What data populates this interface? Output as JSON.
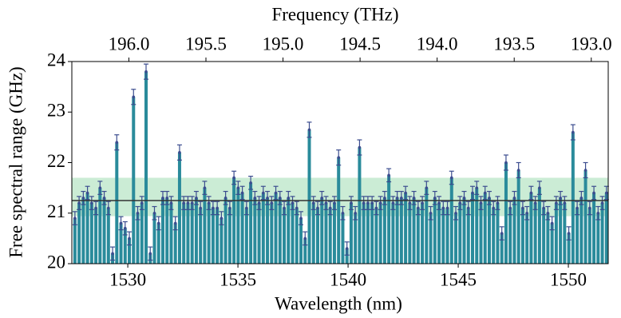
{
  "chart_data": {
    "type": "bar",
    "title": "Frequency (THz)",
    "x_label": "Wavelength (nm)",
    "y_label": "Free spectral range (GHz)",
    "x": [
      1527.6,
      1527.79,
      1527.98,
      1528.17,
      1528.36,
      1528.55,
      1528.74,
      1528.93,
      1529.12,
      1529.31,
      1529.5,
      1529.69,
      1529.88,
      1530.07,
      1530.26,
      1530.45,
      1530.64,
      1530.83,
      1531.02,
      1531.21,
      1531.4,
      1531.59,
      1531.78,
      1531.97,
      1532.16,
      1532.35,
      1532.54,
      1532.73,
      1532.92,
      1533.11,
      1533.3,
      1533.49,
      1533.68,
      1533.87,
      1534.06,
      1534.25,
      1534.44,
      1534.63,
      1534.82,
      1535.01,
      1535.2,
      1535.39,
      1535.58,
      1535.77,
      1535.96,
      1536.15,
      1536.34,
      1536.53,
      1536.72,
      1536.91,
      1537.1,
      1537.29,
      1537.48,
      1537.67,
      1537.86,
      1538.05,
      1538.24,
      1538.43,
      1538.62,
      1538.81,
      1539.0,
      1539.19,
      1539.38,
      1539.57,
      1539.76,
      1539.95,
      1540.14,
      1540.33,
      1540.52,
      1540.71,
      1540.9,
      1541.09,
      1541.28,
      1541.47,
      1541.66,
      1541.85,
      1542.04,
      1542.23,
      1542.42,
      1542.61,
      1542.8,
      1542.99,
      1543.18,
      1543.37,
      1543.56,
      1543.75,
      1543.94,
      1544.13,
      1544.32,
      1544.51,
      1544.7,
      1544.89,
      1545.08,
      1545.27,
      1545.46,
      1545.65,
      1545.84,
      1546.03,
      1546.22,
      1546.41,
      1546.6,
      1546.79,
      1546.98,
      1547.17,
      1547.36,
      1547.55,
      1547.74,
      1547.93,
      1548.12,
      1548.31,
      1548.5,
      1548.69,
      1548.88,
      1549.07,
      1549.26,
      1549.45,
      1549.64,
      1549.83,
      1550.02,
      1550.21,
      1550.4,
      1550.59,
      1550.78,
      1550.97,
      1551.16,
      1551.35,
      1551.54,
      1551.73
    ],
    "values": [
      20.9,
      21.2,
      21.3,
      21.4,
      21.2,
      21.1,
      21.5,
      21.3,
      21.1,
      20.2,
      22.4,
      20.8,
      20.7,
      20.5,
      23.3,
      21.0,
      21.2,
      23.8,
      20.2,
      21.0,
      20.8,
      21.3,
      21.3,
      21.2,
      20.8,
      22.2,
      21.2,
      21.2,
      21.2,
      21.3,
      21.1,
      21.5,
      21.2,
      21.1,
      21.1,
      20.9,
      21.3,
      21.1,
      21.7,
      21.5,
      21.4,
      21.1,
      21.6,
      21.3,
      21.2,
      21.4,
      21.3,
      21.2,
      21.4,
      21.3,
      21.1,
      21.3,
      21.2,
      21.1,
      20.9,
      20.5,
      22.65,
      21.2,
      21.1,
      21.3,
      21.2,
      21.1,
      21.2,
      22.1,
      21.0,
      20.3,
      21.2,
      21.0,
      22.3,
      21.2,
      21.2,
      21.2,
      21.1,
      21.2,
      21.3,
      21.75,
      21.2,
      21.3,
      21.3,
      21.4,
      21.2,
      21.3,
      21.1,
      21.2,
      21.5,
      21.0,
      21.3,
      21.2,
      21.1,
      21.1,
      21.7,
      21.0,
      21.2,
      21.3,
      21.1,
      21.4,
      21.5,
      21.2,
      21.4,
      21.3,
      21.1,
      21.2,
      20.6,
      22.0,
      21.1,
      21.3,
      21.85,
      21.1,
      21.0,
      21.4,
      21.2,
      21.5,
      21.1,
      21.0,
      20.8,
      21.2,
      21.3,
      21.2,
      20.6,
      22.6,
      21.1,
      21.3,
      21.85,
      21.1,
      21.4,
      21.0,
      21.2,
      21.4
    ],
    "errors": [
      0.13,
      0.13,
      0.13,
      0.13,
      0.13,
      0.13,
      0.13,
      0.13,
      0.13,
      0.13,
      0.15,
      0.13,
      0.13,
      0.13,
      0.15,
      0.13,
      0.13,
      0.15,
      0.13,
      0.13,
      0.13,
      0.13,
      0.13,
      0.13,
      0.13,
      0.15,
      0.13,
      0.13,
      0.13,
      0.13,
      0.13,
      0.13,
      0.13,
      0.13,
      0.13,
      0.13,
      0.13,
      0.13,
      0.13,
      0.13,
      0.13,
      0.13,
      0.13,
      0.13,
      0.13,
      0.13,
      0.13,
      0.13,
      0.13,
      0.13,
      0.13,
      0.13,
      0.13,
      0.13,
      0.13,
      0.13,
      0.15,
      0.13,
      0.13,
      0.13,
      0.13,
      0.13,
      0.13,
      0.15,
      0.13,
      0.13,
      0.13,
      0.13,
      0.15,
      0.13,
      0.13,
      0.13,
      0.13,
      0.13,
      0.13,
      0.13,
      0.13,
      0.13,
      0.13,
      0.13,
      0.13,
      0.13,
      0.13,
      0.13,
      0.13,
      0.13,
      0.13,
      0.13,
      0.13,
      0.13,
      0.13,
      0.13,
      0.13,
      0.13,
      0.13,
      0.13,
      0.13,
      0.13,
      0.13,
      0.13,
      0.13,
      0.13,
      0.13,
      0.15,
      0.13,
      0.13,
      0.15,
      0.13,
      0.13,
      0.13,
      0.13,
      0.13,
      0.13,
      0.13,
      0.13,
      0.13,
      0.13,
      0.13,
      0.13,
      0.15,
      0.13,
      0.13,
      0.15,
      0.13,
      0.13,
      0.13,
      0.13,
      0.13
    ],
    "color": "#2a8b9b",
    "error_color": "#3c4d8f",
    "mean_line": 21.25,
    "line_color": "#333333",
    "band": [
      20.94,
      21.7
    ],
    "band_color": "#a9dfb9",
    "xlim": [
      1527.46,
      1551.81
    ],
    "xticks": [
      1530,
      1535,
      1540,
      1545,
      1550
    ],
    "ylim": [
      20,
      24
    ],
    "yticks": [
      20,
      21,
      22,
      23,
      24
    ],
    "x2lim": [
      196.37,
      192.89
    ],
    "x2ticks": [
      {
        "value": 196,
        "label": "196.0"
      },
      195.5,
      {
        "value": 195,
        "label": "195.0"
      },
      194.5,
      {
        "value": 194,
        "label": "194.0"
      },
      193.5,
      {
        "value": 193,
        "label": "193.0"
      }
    ]
  }
}
